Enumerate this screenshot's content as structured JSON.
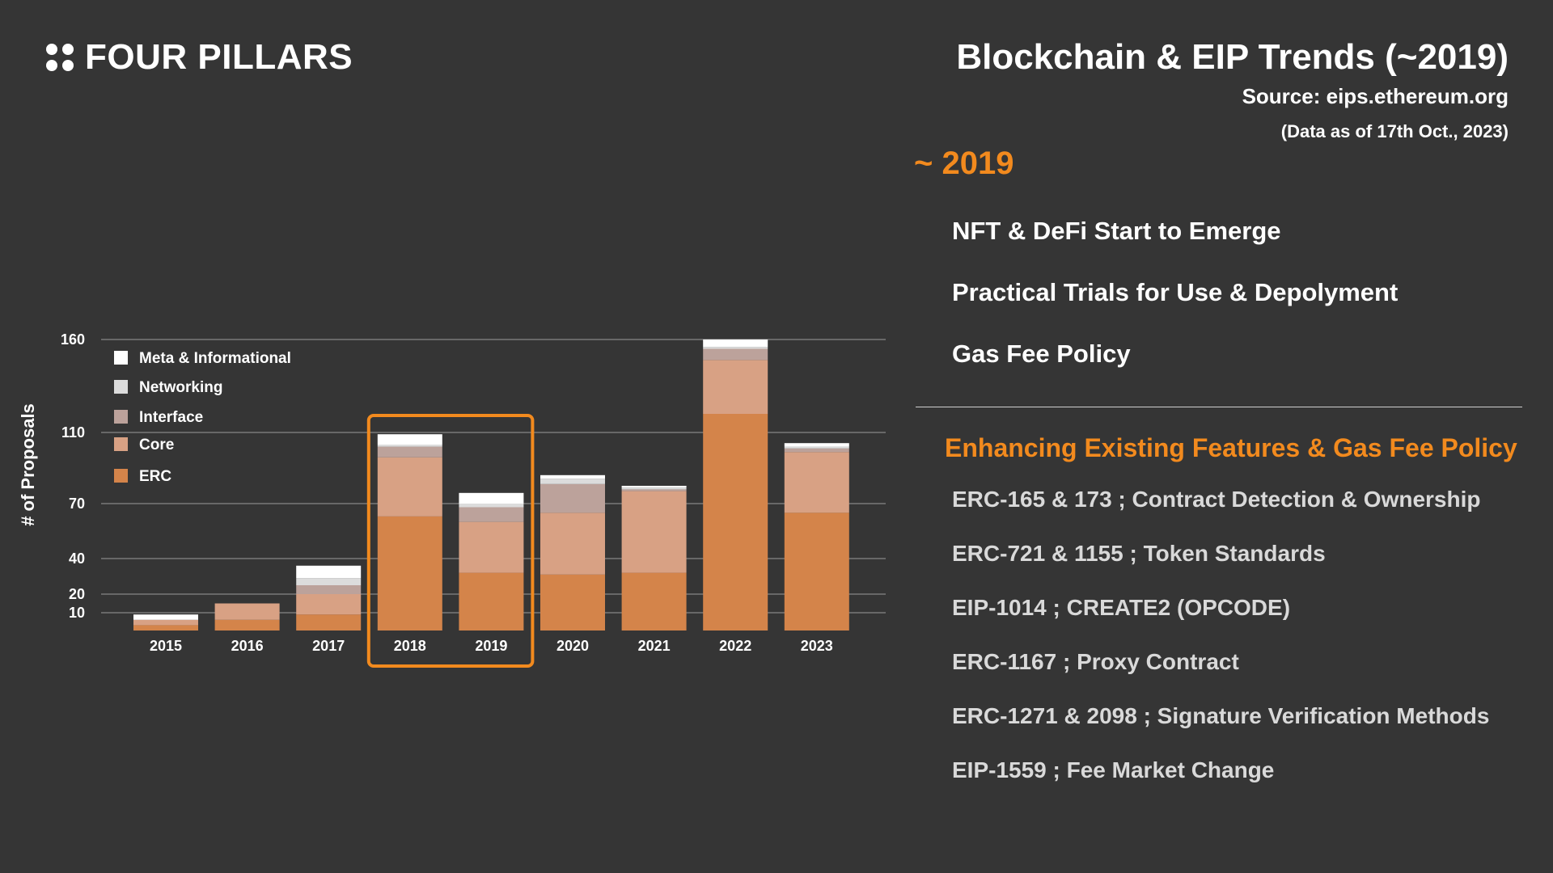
{
  "brand": {
    "name": "FOUR PILLARS"
  },
  "header": {
    "title": "Blockchain & EIP Trends (~2019)",
    "source": "Source: eips.ethereum.org",
    "data_as_of": "(Data as of 17th Oct., 2023)"
  },
  "panel": {
    "era_label": "~ 2019",
    "trends": [
      "NFT & DeFi Start to Emerge",
      "Practical Trials for Use & Depolyment",
      "Gas Fee Policy"
    ],
    "subhead": "Enhancing Existing Features & Gas Fee Policy",
    "items": [
      "ERC-165 & 173 ; Contract Detection & Ownership",
      "ERC-721 & 1155 ; Token Standards",
      "EIP-1014 ; CREATE2 (OPCODE)",
      "ERC-1167 ; Proxy Contract",
      "ERC-1271 & 2098 ; Signature Verification Methods",
      "EIP-1559 ; Fee Market Change"
    ]
  },
  "colors": {
    "accent": "#f28a1e",
    "erc": "#d4844a",
    "core": "#d8a184",
    "interface": "#bca29b",
    "networking": "#dcdcdc",
    "meta": "#ffffff"
  },
  "chart_data": {
    "type": "bar",
    "stacked": true,
    "ylabel": "# of Proposals",
    "yticks": [
      10,
      20,
      40,
      70,
      110,
      160
    ],
    "ylim": [
      0,
      160
    ],
    "grid": true,
    "legend_position": "top-left",
    "highlight_categories": [
      "2018",
      "2019"
    ],
    "categories": [
      "2015",
      "2016",
      "2017",
      "2018",
      "2019",
      "2020",
      "2021",
      "2022",
      "2023"
    ],
    "series": [
      {
        "name": "ERC",
        "color": "#d4844a",
        "values": [
          3,
          6,
          9,
          63,
          32,
          31,
          32,
          120,
          65
        ]
      },
      {
        "name": "Core",
        "color": "#d8a184",
        "values": [
          3,
          9,
          11,
          33,
          28,
          34,
          45,
          29,
          34
        ]
      },
      {
        "name": "Interface",
        "color": "#bca29b",
        "values": [
          0,
          0,
          5,
          6,
          8,
          16,
          1,
          6,
          2
        ]
      },
      {
        "name": "Networking",
        "color": "#dcdcdc",
        "values": [
          0,
          0,
          4,
          1,
          2,
          3,
          1,
          1,
          1
        ]
      },
      {
        "name": "Meta & Informational",
        "color": "#ffffff",
        "values": [
          3,
          0,
          7,
          6,
          6,
          2,
          1,
          4,
          2
        ]
      }
    ]
  }
}
